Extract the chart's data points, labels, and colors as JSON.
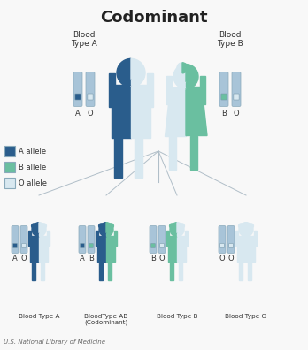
{
  "title": "Codominant",
  "bg_color": "#f8f8f8",
  "title_fontsize": 13,
  "color_A": "#2a5d8c",
  "color_B": "#6abfa0",
  "color_O": "#d8e8f0",
  "color_chr_bg": "#a8c4d8",
  "color_lines": "#b0bec8",
  "legend_items": [
    {
      "label": "A allele",
      "color": "#2a5d8c"
    },
    {
      "label": "B allele",
      "color": "#6abfa0"
    },
    {
      "label": "O allele",
      "color": "#d8e8f0"
    }
  ],
  "footer": "U.S. National Library of Medicine",
  "child_labels": [
    "Blood Type A",
    "BloodType AB\n(Codominant)",
    "Blood Type B",
    "Blood Type O"
  ],
  "child_genotypes": [
    [
      "A",
      "O"
    ],
    [
      "A",
      "B"
    ],
    [
      "B",
      "O"
    ],
    [
      "O",
      "O"
    ]
  ],
  "parent_left_genotype": [
    "A",
    "O"
  ],
  "parent_right_genotype": [
    "B",
    "O"
  ],
  "parent_left_label": "Blood\nType A",
  "parent_right_label": "Blood\nType B"
}
